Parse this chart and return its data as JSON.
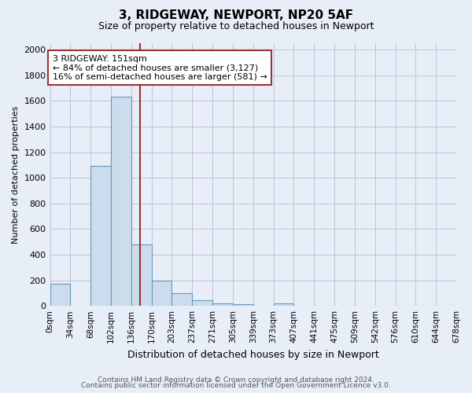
{
  "title": "3, RIDGEWAY, NEWPORT, NP20 5AF",
  "subtitle": "Size of property relative to detached houses in Newport",
  "xlabel": "Distribution of detached houses by size in Newport",
  "ylabel": "Number of detached properties",
  "footnote1": "Contains HM Land Registry data © Crown copyright and database right 2024.",
  "footnote2": "Contains public sector information licensed under the Open Government Licence v3.0.",
  "bin_labels": [
    "0sqm",
    "34sqm",
    "68sqm",
    "102sqm",
    "136sqm",
    "170sqm",
    "203sqm",
    "237sqm",
    "271sqm",
    "305sqm",
    "339sqm",
    "373sqm",
    "407sqm",
    "441sqm",
    "475sqm",
    "509sqm",
    "542sqm",
    "576sqm",
    "610sqm",
    "644sqm",
    "678sqm"
  ],
  "bar_heights": [
    170,
    0,
    1090,
    1630,
    480,
    200,
    100,
    42,
    20,
    12,
    0,
    20,
    0,
    0,
    0,
    0,
    0,
    0,
    0,
    0
  ],
  "bar_color": "#ccdcec",
  "bar_edge_color": "#6699bb",
  "background_color": "#e8eef8",
  "grid_color": "#bbbbcc",
  "vline_color": "#993333",
  "annotation_text": "3 RIDGEWAY: 151sqm\n← 84% of detached houses are smaller (3,127)\n16% of semi-detached houses are larger (581) →",
  "annotation_box_color": "white",
  "annotation_box_edge": "#993333",
  "ylim": [
    0,
    2050
  ],
  "yticks": [
    0,
    200,
    400,
    600,
    800,
    1000,
    1200,
    1400,
    1600,
    1800,
    2000
  ],
  "title_fontsize": 11,
  "subtitle_fontsize": 9,
  "ylabel_fontsize": 8,
  "xlabel_fontsize": 9,
  "tick_fontsize": 8,
  "xtick_fontsize": 7.5,
  "footnote_fontsize": 6.5,
  "annot_fontsize": 8
}
